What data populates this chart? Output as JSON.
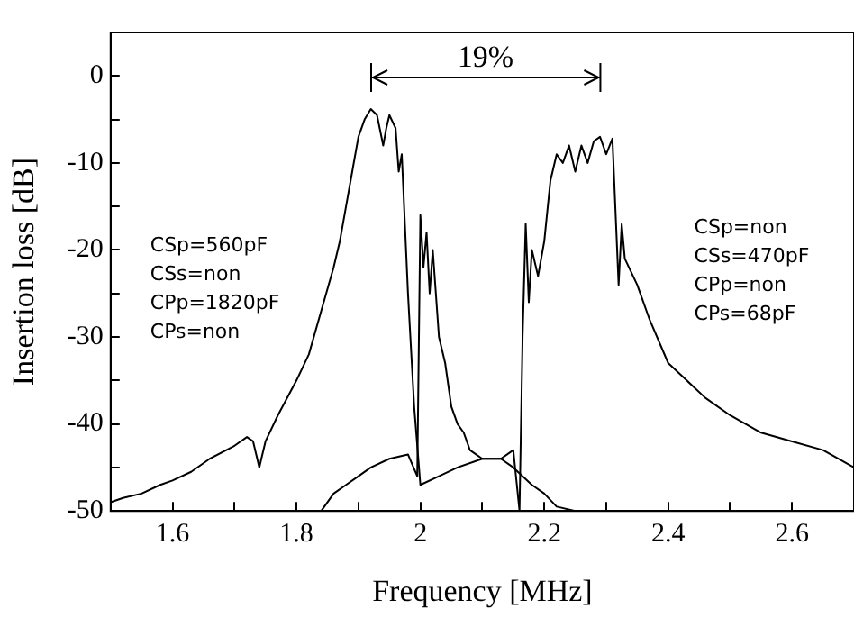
{
  "chart_data": {
    "type": "line",
    "xlabel": "Frequency [MHz]",
    "ylabel": "Insertion loss [dB]",
    "xlim": [
      1.5,
      2.7
    ],
    "ylim": [
      -50,
      5
    ],
    "xticks": [
      1.6,
      {
        "value": 1.7,
        "label": null
      },
      1.8,
      {
        "value": 1.9,
        "label": null
      },
      2.0,
      {
        "value": 2.1,
        "label": null
      },
      2.2,
      {
        "value": 2.3,
        "label": null
      },
      2.4,
      {
        "value": 2.5,
        "label": null
      },
      2.6
    ],
    "yticks": [
      -50,
      {
        "value": -45,
        "label": null
      },
      -40,
      {
        "value": -35,
        "label": null
      },
      -30,
      {
        "value": -25,
        "label": null
      },
      -20,
      {
        "value": -15,
        "label": null
      },
      -10,
      {
        "value": -5,
        "label": null
      },
      0
    ],
    "grid": false,
    "legend": false,
    "marker": "none",
    "line_style": "solid",
    "series": [
      {
        "color": "#000000",
        "x": [
          1.5,
          1.52,
          1.55,
          1.58,
          1.6,
          1.63,
          1.66,
          1.7,
          1.72,
          1.73,
          1.74,
          1.75,
          1.77,
          1.8,
          1.82,
          1.84,
          1.86,
          1.87,
          1.88,
          1.89,
          1.9,
          1.91,
          1.92,
          1.93,
          1.94,
          1.945,
          1.95,
          1.96,
          1.965,
          1.97,
          1.98,
          1.99,
          2.0,
          2.03,
          2.06,
          2.1,
          2.13,
          2.15,
          2.18,
          2.2,
          2.22,
          2.25
        ],
        "values": [
          -49,
          -48.5,
          -48,
          -47,
          -46.5,
          -45.5,
          -44,
          -42.5,
          -41.5,
          -42,
          -45,
          -42,
          -39,
          -35,
          -32,
          -27,
          -22,
          -19,
          -15,
          -11,
          -7,
          -5,
          -3.8,
          -4.5,
          -8,
          -6,
          -4.5,
          -6,
          -11,
          -9,
          -25,
          -38,
          -47,
          -46,
          -45,
          -44,
          -44,
          -45,
          -47,
          -48,
          -49.5,
          -50
        ]
      },
      {
        "color": "#000000",
        "x": [
          1.84,
          1.86,
          1.88,
          1.9,
          1.92,
          1.95,
          1.98,
          1.995,
          2.0,
          2.005,
          2.01,
          2.015,
          2.02,
          2.03,
          2.04,
          2.05,
          2.06,
          2.07,
          2.08,
          2.1,
          2.13,
          2.15,
          2.16,
          2.165,
          2.17,
          2.175,
          2.18,
          2.19,
          2.2,
          2.21,
          2.22,
          2.23,
          2.24,
          2.25,
          2.26,
          2.27,
          2.28,
          2.29,
          2.3,
          2.31,
          2.32,
          2.325,
          2.33,
          2.35,
          2.37,
          2.4,
          2.43,
          2.46,
          2.5,
          2.55,
          2.6,
          2.65,
          2.7
        ],
        "values": [
          -50,
          -48,
          -47,
          -46,
          -45,
          -44,
          -43.5,
          -46,
          -16,
          -22,
          -18,
          -25,
          -20,
          -30,
          -33,
          -38,
          -40,
          -41,
          -43,
          -44,
          -44,
          -43,
          -50,
          -30,
          -17,
          -26,
          -20,
          -23,
          -19,
          -12,
          -9,
          -10,
          -8,
          -11,
          -8,
          -10,
          -7.5,
          -7,
          -9,
          -7.2,
          -24,
          -17,
          -21,
          -24,
          -28,
          -33,
          -35,
          -37,
          -39,
          -41,
          -42,
          -43,
          -45
        ]
      }
    ],
    "annotations": [
      "CSp=560pF\nCSs=non\nCPp=1820pF\nCPs=non",
      "CSp=non\nCSs=470pF\nCPp=non\nCPs=68pF",
      "19%"
    ]
  }
}
